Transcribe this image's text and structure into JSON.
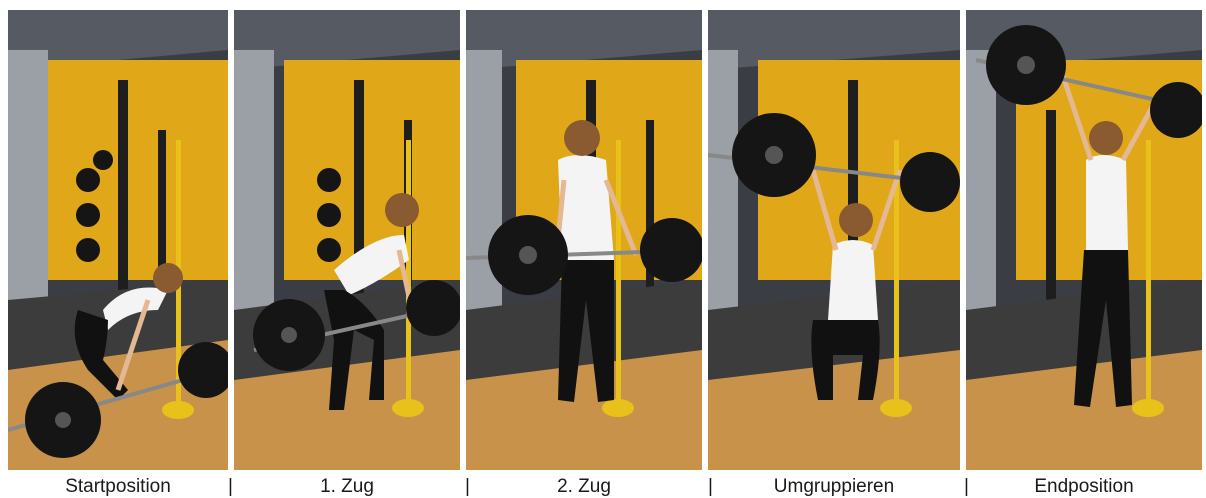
{
  "captions": [
    "Startposition",
    "1. Zug",
    "2. Zug",
    "Umgruppieren",
    "Endposition"
  ],
  "separator": "|",
  "palette": {
    "wall": "#e0a818",
    "ceiling": "#3a3d44",
    "floor_wood": "#c8924a",
    "floor_mat": "#3c3c3c",
    "rack": "#1e1e1e",
    "plate": "#151515",
    "shirt": "#f4f4f4",
    "leggings": "#111111",
    "hair": "#8a5a30",
    "skin": "#e3b893",
    "pole": "#e8c21a"
  }
}
